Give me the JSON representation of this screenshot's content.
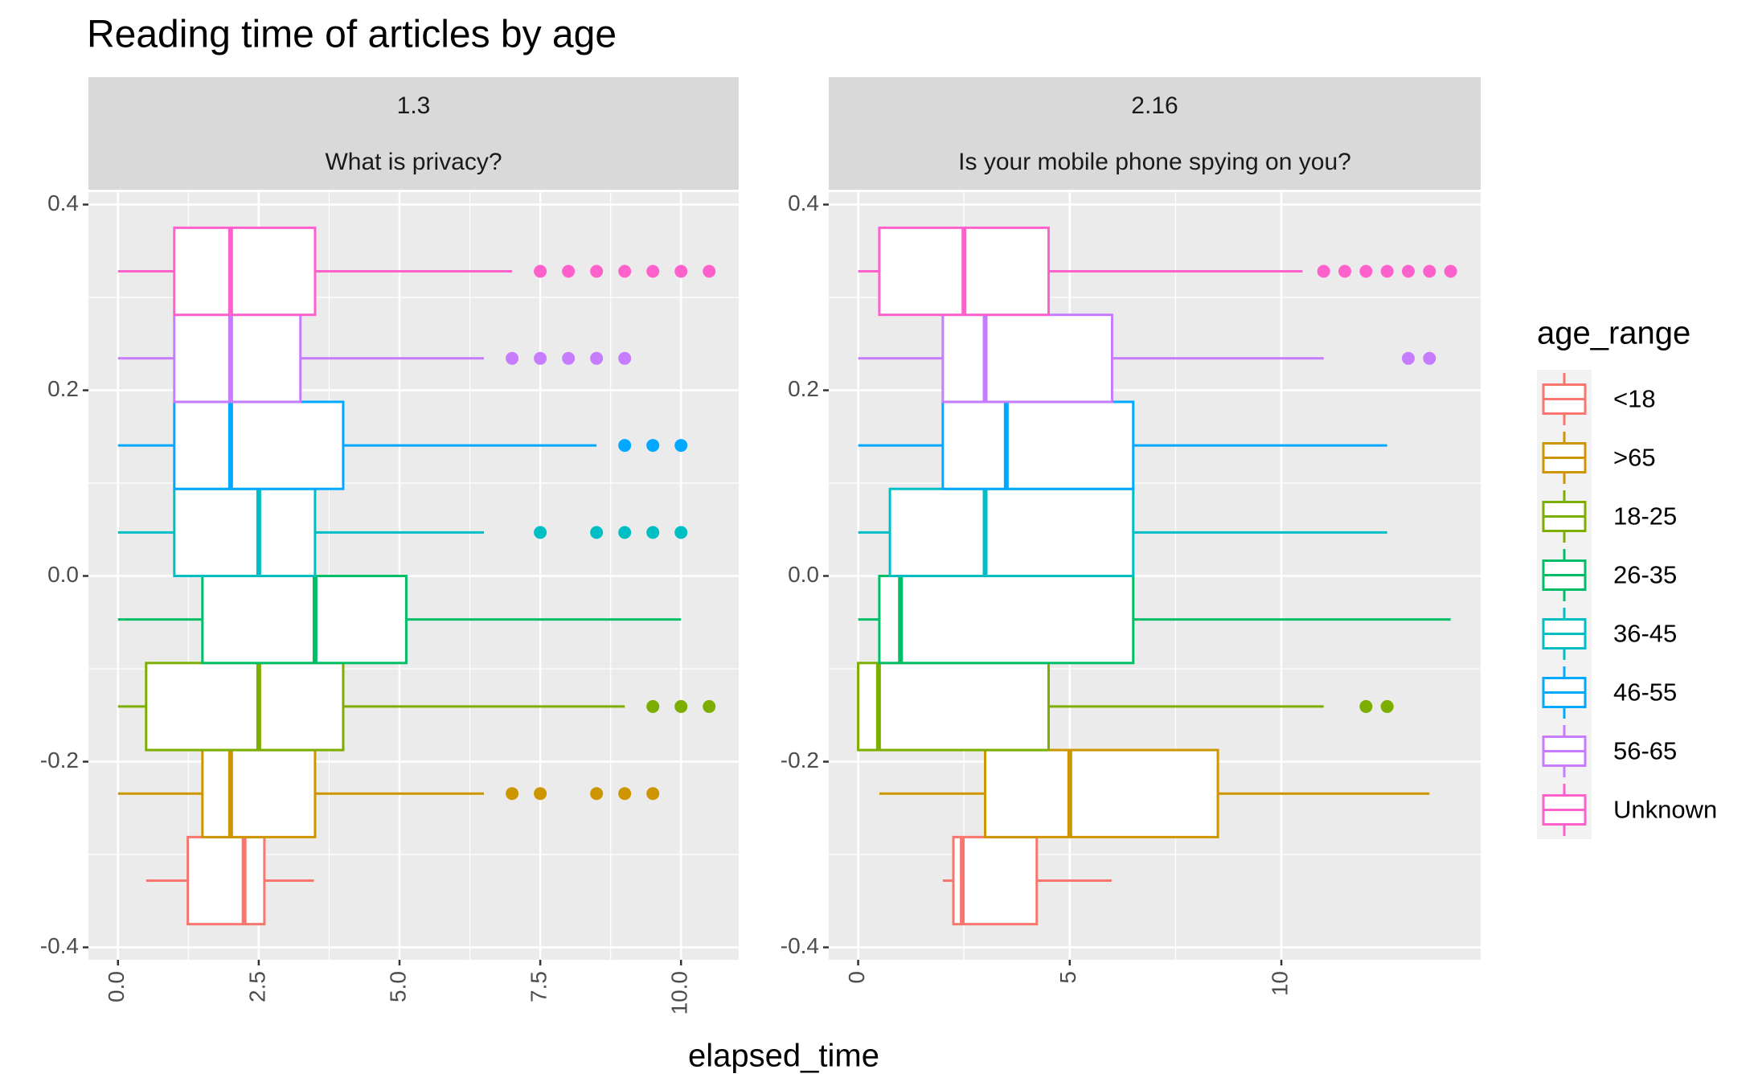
{
  "chart_data": [
    {
      "type": "boxplot",
      "title": "Reading time of articles by age",
      "xlabel": "elapsed_time",
      "legend_title": "age_range",
      "strip": [
        "1.3",
        "What is privacy?"
      ],
      "xlim": [
        -0.525,
        11.025
      ],
      "xticks": [
        {
          "value": 0,
          "label": "0.0"
        },
        2.5,
        {
          "value": 5,
          "label": "5.0"
        },
        7.5,
        {
          "value": 10,
          "label": "10.0"
        }
      ],
      "ylim": [
        -0.4134,
        0.4134
      ],
      "yticks": [
        -0.4,
        -0.2,
        {
          "value": 0,
          "label": "0.0"
        },
        0.2,
        0.4
      ],
      "grid": true,
      "series": [
        {
          "name": "<18",
          "color": "#F8766D",
          "lower": 0.5,
          "q1": 1.24,
          "median": 2.24,
          "q3": 2.6,
          "upper": 3.48,
          "outliers": []
        },
        {
          "name": ">65",
          "color": "#CD9600",
          "lower": 0,
          "q1": 1.5,
          "median": 2.0,
          "q3": 3.5,
          "upper": 6.5,
          "outliers": [
            7.0,
            7.5,
            8.5,
            9.0,
            9.5
          ]
        },
        {
          "name": "18-25",
          "color": "#7CAE00",
          "lower": 0,
          "q1": 0.5,
          "median": 2.5,
          "q3": 4.0,
          "upper": 9.0,
          "outliers": [
            9.5,
            10.0,
            10.5
          ]
        },
        {
          "name": "26-35",
          "color": "#00BE67",
          "lower": 0,
          "q1": 1.5,
          "median": 3.5,
          "q3": 5.12,
          "upper": 10.0,
          "outliers": []
        },
        {
          "name": "36-45",
          "color": "#00BFC4",
          "lower": 0,
          "q1": 1.0,
          "median": 2.5,
          "q3": 3.5,
          "upper": 6.5,
          "outliers": [
            7.5,
            8.5,
            9.0,
            9.5,
            10.0
          ]
        },
        {
          "name": "46-55",
          "color": "#00A9FF",
          "lower": 0,
          "q1": 1.0,
          "median": 2.0,
          "q3": 4.0,
          "upper": 8.5,
          "outliers": [
            9.0,
            9.5,
            10.0
          ]
        },
        {
          "name": "56-65",
          "color": "#C77CFF",
          "lower": 0,
          "q1": 1.0,
          "median": 2.0,
          "q3": 3.24,
          "upper": 6.5,
          "outliers": [
            7.0,
            7.5,
            8.0,
            8.5,
            9.0
          ]
        },
        {
          "name": "Unknown",
          "color": "#FF61CC",
          "lower": 0,
          "q1": 1.0,
          "median": 2.0,
          "q3": 3.5,
          "upper": 7.0,
          "outliers": [
            7.5,
            8.0,
            8.5,
            9.0,
            9.5,
            10.0,
            10.5
          ]
        }
      ]
    },
    {
      "type": "boxplot",
      "strip": [
        "2.16",
        "Is your mobile phone spying on you?"
      ],
      "xlim": [
        -0.695,
        14.71
      ],
      "xticks": [
        0,
        5,
        10
      ],
      "ylim": [
        -0.4134,
        0.4134
      ],
      "yticks": [
        -0.4,
        -0.2,
        {
          "value": 0,
          "label": "0.0"
        },
        0.2,
        0.4
      ],
      "grid": true,
      "series": [
        {
          "name": "<18",
          "color": "#F8766D",
          "lower": 2.0,
          "q1": 2.25,
          "median": 2.46,
          "q3": 4.22,
          "upper": 5.99,
          "outliers": []
        },
        {
          "name": ">65",
          "color": "#CD9600",
          "lower": 0.5,
          "q1": 3.0,
          "median": 5.0,
          "q3": 8.5,
          "upper": 13.5,
          "outliers": []
        },
        {
          "name": "18-25",
          "color": "#7CAE00",
          "lower": 0,
          "q1": 0,
          "median": 0.48,
          "q3": 4.5,
          "upper": 11.0,
          "outliers": [
            12.0,
            12.5
          ]
        },
        {
          "name": "26-35",
          "color": "#00BE67",
          "lower": 0,
          "q1": 0.5,
          "median": 1.0,
          "q3": 6.5,
          "upper": 14.0,
          "outliers": []
        },
        {
          "name": "36-45",
          "color": "#00BFC4",
          "lower": 0,
          "q1": 0.75,
          "median": 3.0,
          "q3": 6.5,
          "upper": 12.5,
          "outliers": []
        },
        {
          "name": "46-55",
          "color": "#00A9FF",
          "lower": 0,
          "q1": 2.0,
          "median": 3.5,
          "q3": 6.5,
          "upper": 12.5,
          "outliers": []
        },
        {
          "name": "56-65",
          "color": "#C77CFF",
          "lower": 0,
          "q1": 2.0,
          "median": 3.0,
          "q3": 6.0,
          "upper": 11.0,
          "outliers": [
            13.0,
            13.5
          ]
        },
        {
          "name": "Unknown",
          "color": "#FF61CC",
          "lower": 0,
          "q1": 0.5,
          "median": 2.5,
          "q3": 4.5,
          "upper": 10.5,
          "outliers": [
            11.0,
            11.5,
            12.0,
            12.5,
            13.0,
            13.5,
            14.0
          ]
        }
      ]
    }
  ]
}
